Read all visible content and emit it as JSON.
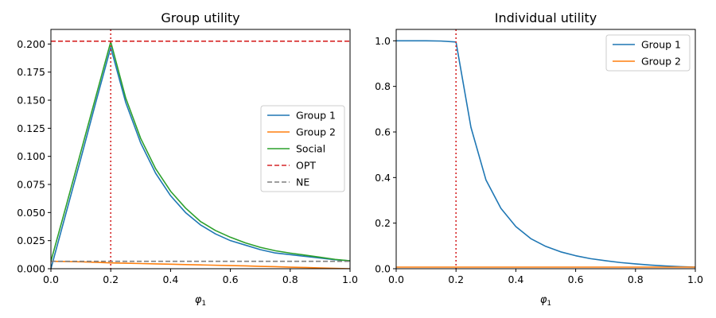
{
  "chart_data": [
    {
      "type": "line",
      "title": "Group utility",
      "xlabel": "φ",
      "xlabel_sub": "1",
      "ylabel": "",
      "xlim": [
        0,
        1.0
      ],
      "ylim": [
        0,
        0.213
      ],
      "xticks": [
        0.0,
        0.2,
        0.4,
        0.6,
        0.8,
        1.0
      ],
      "xtick_labels": [
        "0.0",
        "0.2",
        "0.4",
        "0.6",
        "0.8",
        "1.0"
      ],
      "yticks": [
        0.0,
        0.025,
        0.05,
        0.075,
        0.1,
        0.125,
        0.15,
        0.175,
        0.2
      ],
      "ytick_labels": [
        "0.000",
        "0.025",
        "0.050",
        "0.075",
        "0.100",
        "0.125",
        "0.150",
        "0.175",
        "0.200"
      ],
      "grid": false,
      "legend_position": "center-right",
      "x": [
        0.0,
        0.05,
        0.1,
        0.15,
        0.2,
        0.25,
        0.3,
        0.35,
        0.4,
        0.45,
        0.5,
        0.55,
        0.6,
        0.65,
        0.7,
        0.75,
        0.8,
        0.85,
        0.9,
        0.95,
        1.0
      ],
      "series": [
        {
          "name": "Group 1",
          "color": "#1f77b4",
          "style": "solid",
          "values": [
            0.0,
            0.049,
            0.098,
            0.148,
            0.197,
            0.148,
            0.112,
            0.085,
            0.065,
            0.05,
            0.039,
            0.031,
            0.025,
            0.021,
            0.017,
            0.014,
            0.0125,
            0.011,
            0.0095,
            0.008,
            0.007
          ]
        },
        {
          "name": "Group 2",
          "color": "#ff7f0e",
          "style": "solid",
          "values": [
            0.0066,
            0.0064,
            0.0061,
            0.0057,
            0.0052,
            0.0049,
            0.0046,
            0.0043,
            0.004,
            0.0037,
            0.0034,
            0.0031,
            0.0028,
            0.0025,
            0.0021,
            0.0018,
            0.0014,
            0.0011,
            0.0007,
            0.0003,
            0.0
          ]
        },
        {
          "name": "Social",
          "color": "#2ca02c",
          "style": "solid",
          "values": [
            0.0066,
            0.055,
            0.104,
            0.153,
            0.202,
            0.152,
            0.116,
            0.089,
            0.069,
            0.054,
            0.042,
            0.034,
            0.028,
            0.023,
            0.019,
            0.016,
            0.0139,
            0.0121,
            0.0102,
            0.0083,
            0.007
          ]
        },
        {
          "name": "OPT",
          "color": "#d62728",
          "style": "dashed-hline",
          "value": 0.2025
        },
        {
          "name": "NE",
          "color": "#7f7f7f",
          "style": "dashed",
          "x": [
            0.0,
            1.0
          ],
          "values": [
            0.0066,
            0.0066
          ]
        }
      ],
      "vline": {
        "x": 0.2,
        "color": "#d62728",
        "style": "dotted"
      }
    },
    {
      "type": "line",
      "title": "Individual utility",
      "xlabel": "φ",
      "xlabel_sub": "1",
      "ylabel": "",
      "xlim": [
        0,
        1.0
      ],
      "ylim": [
        0,
        1.05
      ],
      "xticks": [
        0.0,
        0.2,
        0.4,
        0.6,
        0.8,
        1.0
      ],
      "xtick_labels": [
        "0.0",
        "0.2",
        "0.4",
        "0.6",
        "0.8",
        "1.0"
      ],
      "yticks": [
        0.0,
        0.2,
        0.4,
        0.6,
        0.8,
        1.0
      ],
      "ytick_labels": [
        "0.0",
        "0.2",
        "0.4",
        "0.6",
        "0.8",
        "1.0"
      ],
      "grid": false,
      "legend_position": "top-right",
      "x": [
        0.0,
        0.05,
        0.1,
        0.15,
        0.2,
        0.25,
        0.3,
        0.35,
        0.4,
        0.45,
        0.5,
        0.55,
        0.6,
        0.65,
        0.7,
        0.75,
        0.8,
        0.85,
        0.9,
        0.95,
        1.0
      ],
      "series": [
        {
          "name": "Group 1",
          "color": "#1f77b4",
          "style": "solid",
          "values": [
            1.0,
            1.0,
            1.0,
            0.999,
            0.995,
            0.62,
            0.39,
            0.265,
            0.185,
            0.132,
            0.098,
            0.074,
            0.057,
            0.044,
            0.035,
            0.027,
            0.021,
            0.016,
            0.012,
            0.009,
            0.007
          ]
        },
        {
          "name": "Group 2",
          "color": "#ff7f0e",
          "style": "solid",
          "values": [
            0.007,
            0.007,
            0.007,
            0.007,
            0.007,
            0.007,
            0.007,
            0.007,
            0.007,
            0.007,
            0.007,
            0.007,
            0.007,
            0.007,
            0.007,
            0.007,
            0.007,
            0.007,
            0.007,
            0.007,
            0.007
          ]
        }
      ],
      "vline": {
        "x": 0.2,
        "color": "#d62728",
        "style": "dotted"
      }
    }
  ]
}
